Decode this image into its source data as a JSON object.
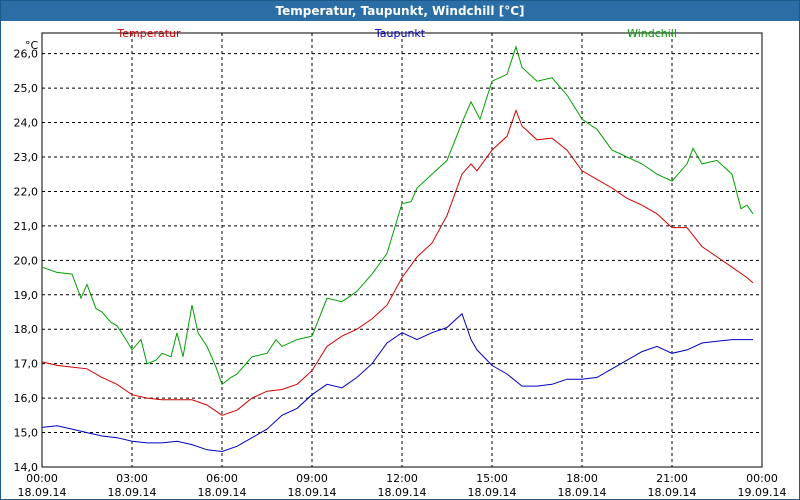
{
  "window": {
    "title": "Temperatur, Taupunkt, Windchill [°C]"
  },
  "colors": {
    "titlebar": "#2b6ea6",
    "temperatur": "#d00000",
    "taupunkt": "#0000c0",
    "windchill": "#00a000",
    "grid": "#000000"
  },
  "chart_data": {
    "type": "line",
    "title": "Temperatur, Taupunkt, Windchill [°C]",
    "ylabel": "°C",
    "ylim": [
      14.0,
      26.6
    ],
    "xlim_hours": [
      0,
      24
    ],
    "grid": true,
    "legend_placement": "top",
    "y_ticks": [
      "14,0",
      "15,0",
      "16,0",
      "17,0",
      "18,0",
      "19,0",
      "20,0",
      "21,0",
      "22,0",
      "23,0",
      "24,0",
      "25,0",
      "26,0"
    ],
    "x_ticks": [
      {
        "time": "00:00",
        "date": "18.09.14"
      },
      {
        "time": "03:00",
        "date": "18.09.14"
      },
      {
        "time": "06:00",
        "date": "18.09.14"
      },
      {
        "time": "09:00",
        "date": "18.09.14"
      },
      {
        "time": "12:00",
        "date": "18.09.14"
      },
      {
        "time": "15:00",
        "date": "18.09.14"
      },
      {
        "time": "18:00",
        "date": "18.09.14"
      },
      {
        "time": "21:00",
        "date": "18.09.14"
      },
      {
        "time": "00:00",
        "date": "19.09.14"
      }
    ],
    "series": [
      {
        "name": "Temperatur",
        "color": "#d00000",
        "points": [
          [
            0,
            17.05
          ],
          [
            0.5,
            16.95
          ],
          [
            1,
            16.9
          ],
          [
            1.5,
            16.85
          ],
          [
            2,
            16.6
          ],
          [
            2.5,
            16.4
          ],
          [
            3,
            16.1
          ],
          [
            3.5,
            16.0
          ],
          [
            4,
            15.95
          ],
          [
            4.5,
            15.95
          ],
          [
            5,
            15.95
          ],
          [
            5.5,
            15.8
          ],
          [
            6,
            15.5
          ],
          [
            6.5,
            15.65
          ],
          [
            7,
            16.0
          ],
          [
            7.5,
            16.2
          ],
          [
            8,
            16.25
          ],
          [
            8.5,
            16.4
          ],
          [
            9,
            16.8
          ],
          [
            9.5,
            17.5
          ],
          [
            10,
            17.8
          ],
          [
            10.5,
            18.0
          ],
          [
            11,
            18.3
          ],
          [
            11.5,
            18.7
          ],
          [
            12,
            19.5
          ],
          [
            12.5,
            20.1
          ],
          [
            13,
            20.5
          ],
          [
            13.5,
            21.3
          ],
          [
            14,
            22.5
          ],
          [
            14.3,
            22.8
          ],
          [
            14.5,
            22.6
          ],
          [
            15,
            23.2
          ],
          [
            15.5,
            23.6
          ],
          [
            15.8,
            24.35
          ],
          [
            16,
            23.9
          ],
          [
            16.5,
            23.5
          ],
          [
            17,
            23.55
          ],
          [
            17.5,
            23.2
          ],
          [
            18,
            22.6
          ],
          [
            18.5,
            22.35
          ],
          [
            19,
            22.1
          ],
          [
            19.5,
            21.8
          ],
          [
            20,
            21.6
          ],
          [
            20.5,
            21.35
          ],
          [
            21,
            20.95
          ],
          [
            21.5,
            20.95
          ],
          [
            22,
            20.4
          ],
          [
            22.5,
            20.1
          ],
          [
            23,
            19.8
          ],
          [
            23.5,
            19.5
          ],
          [
            23.7,
            19.35
          ]
        ]
      },
      {
        "name": "Taupunkt",
        "color": "#0000c0",
        "points": [
          [
            0,
            15.15
          ],
          [
            0.5,
            15.2
          ],
          [
            1,
            15.1
          ],
          [
            1.5,
            15.0
          ],
          [
            2,
            14.9
          ],
          [
            2.5,
            14.85
          ],
          [
            3,
            14.75
          ],
          [
            3.5,
            14.7
          ],
          [
            4,
            14.7
          ],
          [
            4.5,
            14.75
          ],
          [
            5,
            14.65
          ],
          [
            5.5,
            14.5
          ],
          [
            6,
            14.45
          ],
          [
            6.5,
            14.6
          ],
          [
            7,
            14.85
          ],
          [
            7.5,
            15.1
          ],
          [
            8,
            15.5
          ],
          [
            8.5,
            15.7
          ],
          [
            9,
            16.1
          ],
          [
            9.5,
            16.4
          ],
          [
            10,
            16.3
          ],
          [
            10.5,
            16.6
          ],
          [
            11,
            17.0
          ],
          [
            11.5,
            17.6
          ],
          [
            12,
            17.9
          ],
          [
            12.5,
            17.7
          ],
          [
            13,
            17.9
          ],
          [
            13.5,
            18.05
          ],
          [
            14,
            18.45
          ],
          [
            14.3,
            17.7
          ],
          [
            14.5,
            17.4
          ],
          [
            15,
            16.95
          ],
          [
            15.5,
            16.7
          ],
          [
            16,
            16.35
          ],
          [
            16.5,
            16.35
          ],
          [
            17,
            16.4
          ],
          [
            17.5,
            16.55
          ],
          [
            18,
            16.55
          ],
          [
            18.5,
            16.6
          ],
          [
            19,
            16.85
          ],
          [
            19.5,
            17.1
          ],
          [
            20,
            17.35
          ],
          [
            20.5,
            17.5
          ],
          [
            21,
            17.3
          ],
          [
            21.5,
            17.4
          ],
          [
            22,
            17.6
          ],
          [
            22.5,
            17.65
          ],
          [
            23,
            17.7
          ],
          [
            23.5,
            17.7
          ],
          [
            23.7,
            17.7
          ]
        ]
      },
      {
        "name": "Windchill",
        "color": "#00a000",
        "points": [
          [
            0,
            19.8
          ],
          [
            0.5,
            19.65
          ],
          [
            1,
            19.6
          ],
          [
            1.3,
            18.9
          ],
          [
            1.5,
            19.3
          ],
          [
            1.8,
            18.6
          ],
          [
            2,
            18.5
          ],
          [
            2.3,
            18.2
          ],
          [
            2.5,
            18.1
          ],
          [
            2.8,
            17.7
          ],
          [
            3,
            17.4
          ],
          [
            3.3,
            17.7
          ],
          [
            3.5,
            17.0
          ],
          [
            3.8,
            17.1
          ],
          [
            4,
            17.3
          ],
          [
            4.3,
            17.2
          ],
          [
            4.5,
            17.9
          ],
          [
            4.7,
            17.2
          ],
          [
            5,
            18.7
          ],
          [
            5.2,
            17.9
          ],
          [
            5.5,
            17.5
          ],
          [
            5.8,
            16.9
          ],
          [
            6,
            16.4
          ],
          [
            6.3,
            16.6
          ],
          [
            6.5,
            16.7
          ],
          [
            7,
            17.2
          ],
          [
            7.5,
            17.3
          ],
          [
            7.8,
            17.7
          ],
          [
            8,
            17.5
          ],
          [
            8.5,
            17.7
          ],
          [
            9,
            17.8
          ],
          [
            9.5,
            18.9
          ],
          [
            10,
            18.8
          ],
          [
            10.5,
            19.1
          ],
          [
            11,
            19.6
          ],
          [
            11.5,
            20.2
          ],
          [
            12,
            21.65
          ],
          [
            12.3,
            21.7
          ],
          [
            12.5,
            22.1
          ],
          [
            13,
            22.5
          ],
          [
            13.5,
            22.9
          ],
          [
            14,
            24.0
          ],
          [
            14.3,
            24.6
          ],
          [
            14.6,
            24.1
          ],
          [
            15,
            25.2
          ],
          [
            15.5,
            25.4
          ],
          [
            15.8,
            26.2
          ],
          [
            16,
            25.6
          ],
          [
            16.5,
            25.2
          ],
          [
            17,
            25.3
          ],
          [
            17.5,
            24.8
          ],
          [
            18,
            24.1
          ],
          [
            18.5,
            23.8
          ],
          [
            19,
            23.2
          ],
          [
            19.5,
            23.0
          ],
          [
            20,
            22.8
          ],
          [
            20.5,
            22.5
          ],
          [
            21,
            22.3
          ],
          [
            21.5,
            22.8
          ],
          [
            21.7,
            23.25
          ],
          [
            22,
            22.8
          ],
          [
            22.5,
            22.9
          ],
          [
            23,
            22.5
          ],
          [
            23.3,
            21.5
          ],
          [
            23.5,
            21.6
          ],
          [
            23.7,
            21.35
          ]
        ]
      }
    ]
  }
}
